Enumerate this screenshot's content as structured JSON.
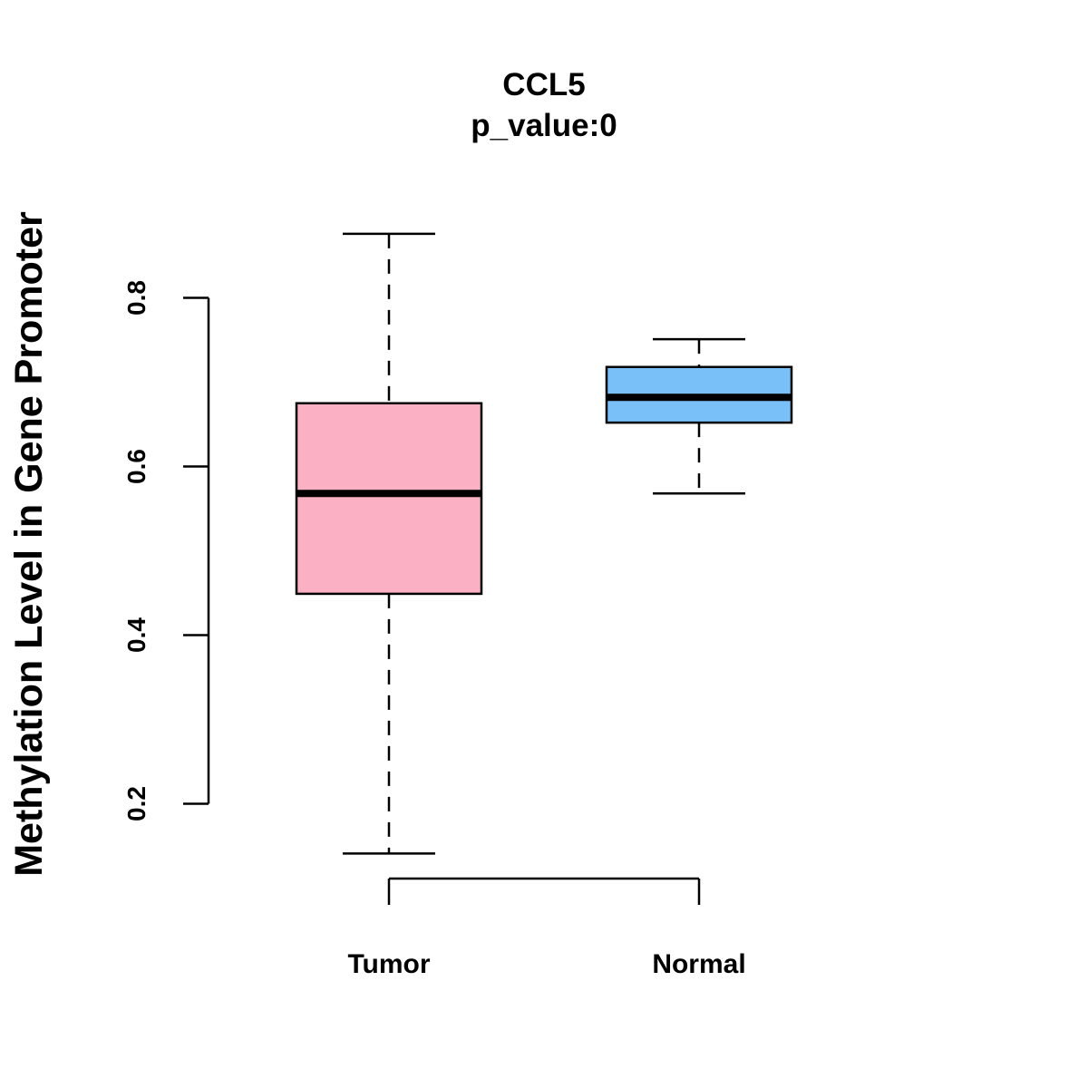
{
  "chart_data": {
    "type": "boxplot",
    "title": "CCL5",
    "subtitle": "p_value:0",
    "xlabel": "",
    "ylabel": "Methylation Level in Gene Promoter",
    "ylim": [
      0.2,
      0.8
    ],
    "yticks": [
      {
        "value": 0.2,
        "label": "0.2"
      },
      {
        "value": 0.4,
        "label": "0.4"
      },
      {
        "value": 0.6,
        "label": "0.6"
      },
      {
        "value": 0.8,
        "label": "0.8"
      }
    ],
    "categories": [
      "Tumor",
      "Normal"
    ],
    "series": [
      {
        "name": "Tumor",
        "color": "#FBB1C3",
        "whisker_low": 0.141,
        "q1": 0.449,
        "median": 0.568,
        "q3": 0.675,
        "whisker_high": 0.876
      },
      {
        "name": "Normal",
        "color": "#79C0F8",
        "whisker_low": 0.568,
        "q1": 0.652,
        "median": 0.682,
        "q3": 0.718,
        "whisker_high": 0.751
      }
    ],
    "grid": false,
    "legend": "none"
  }
}
